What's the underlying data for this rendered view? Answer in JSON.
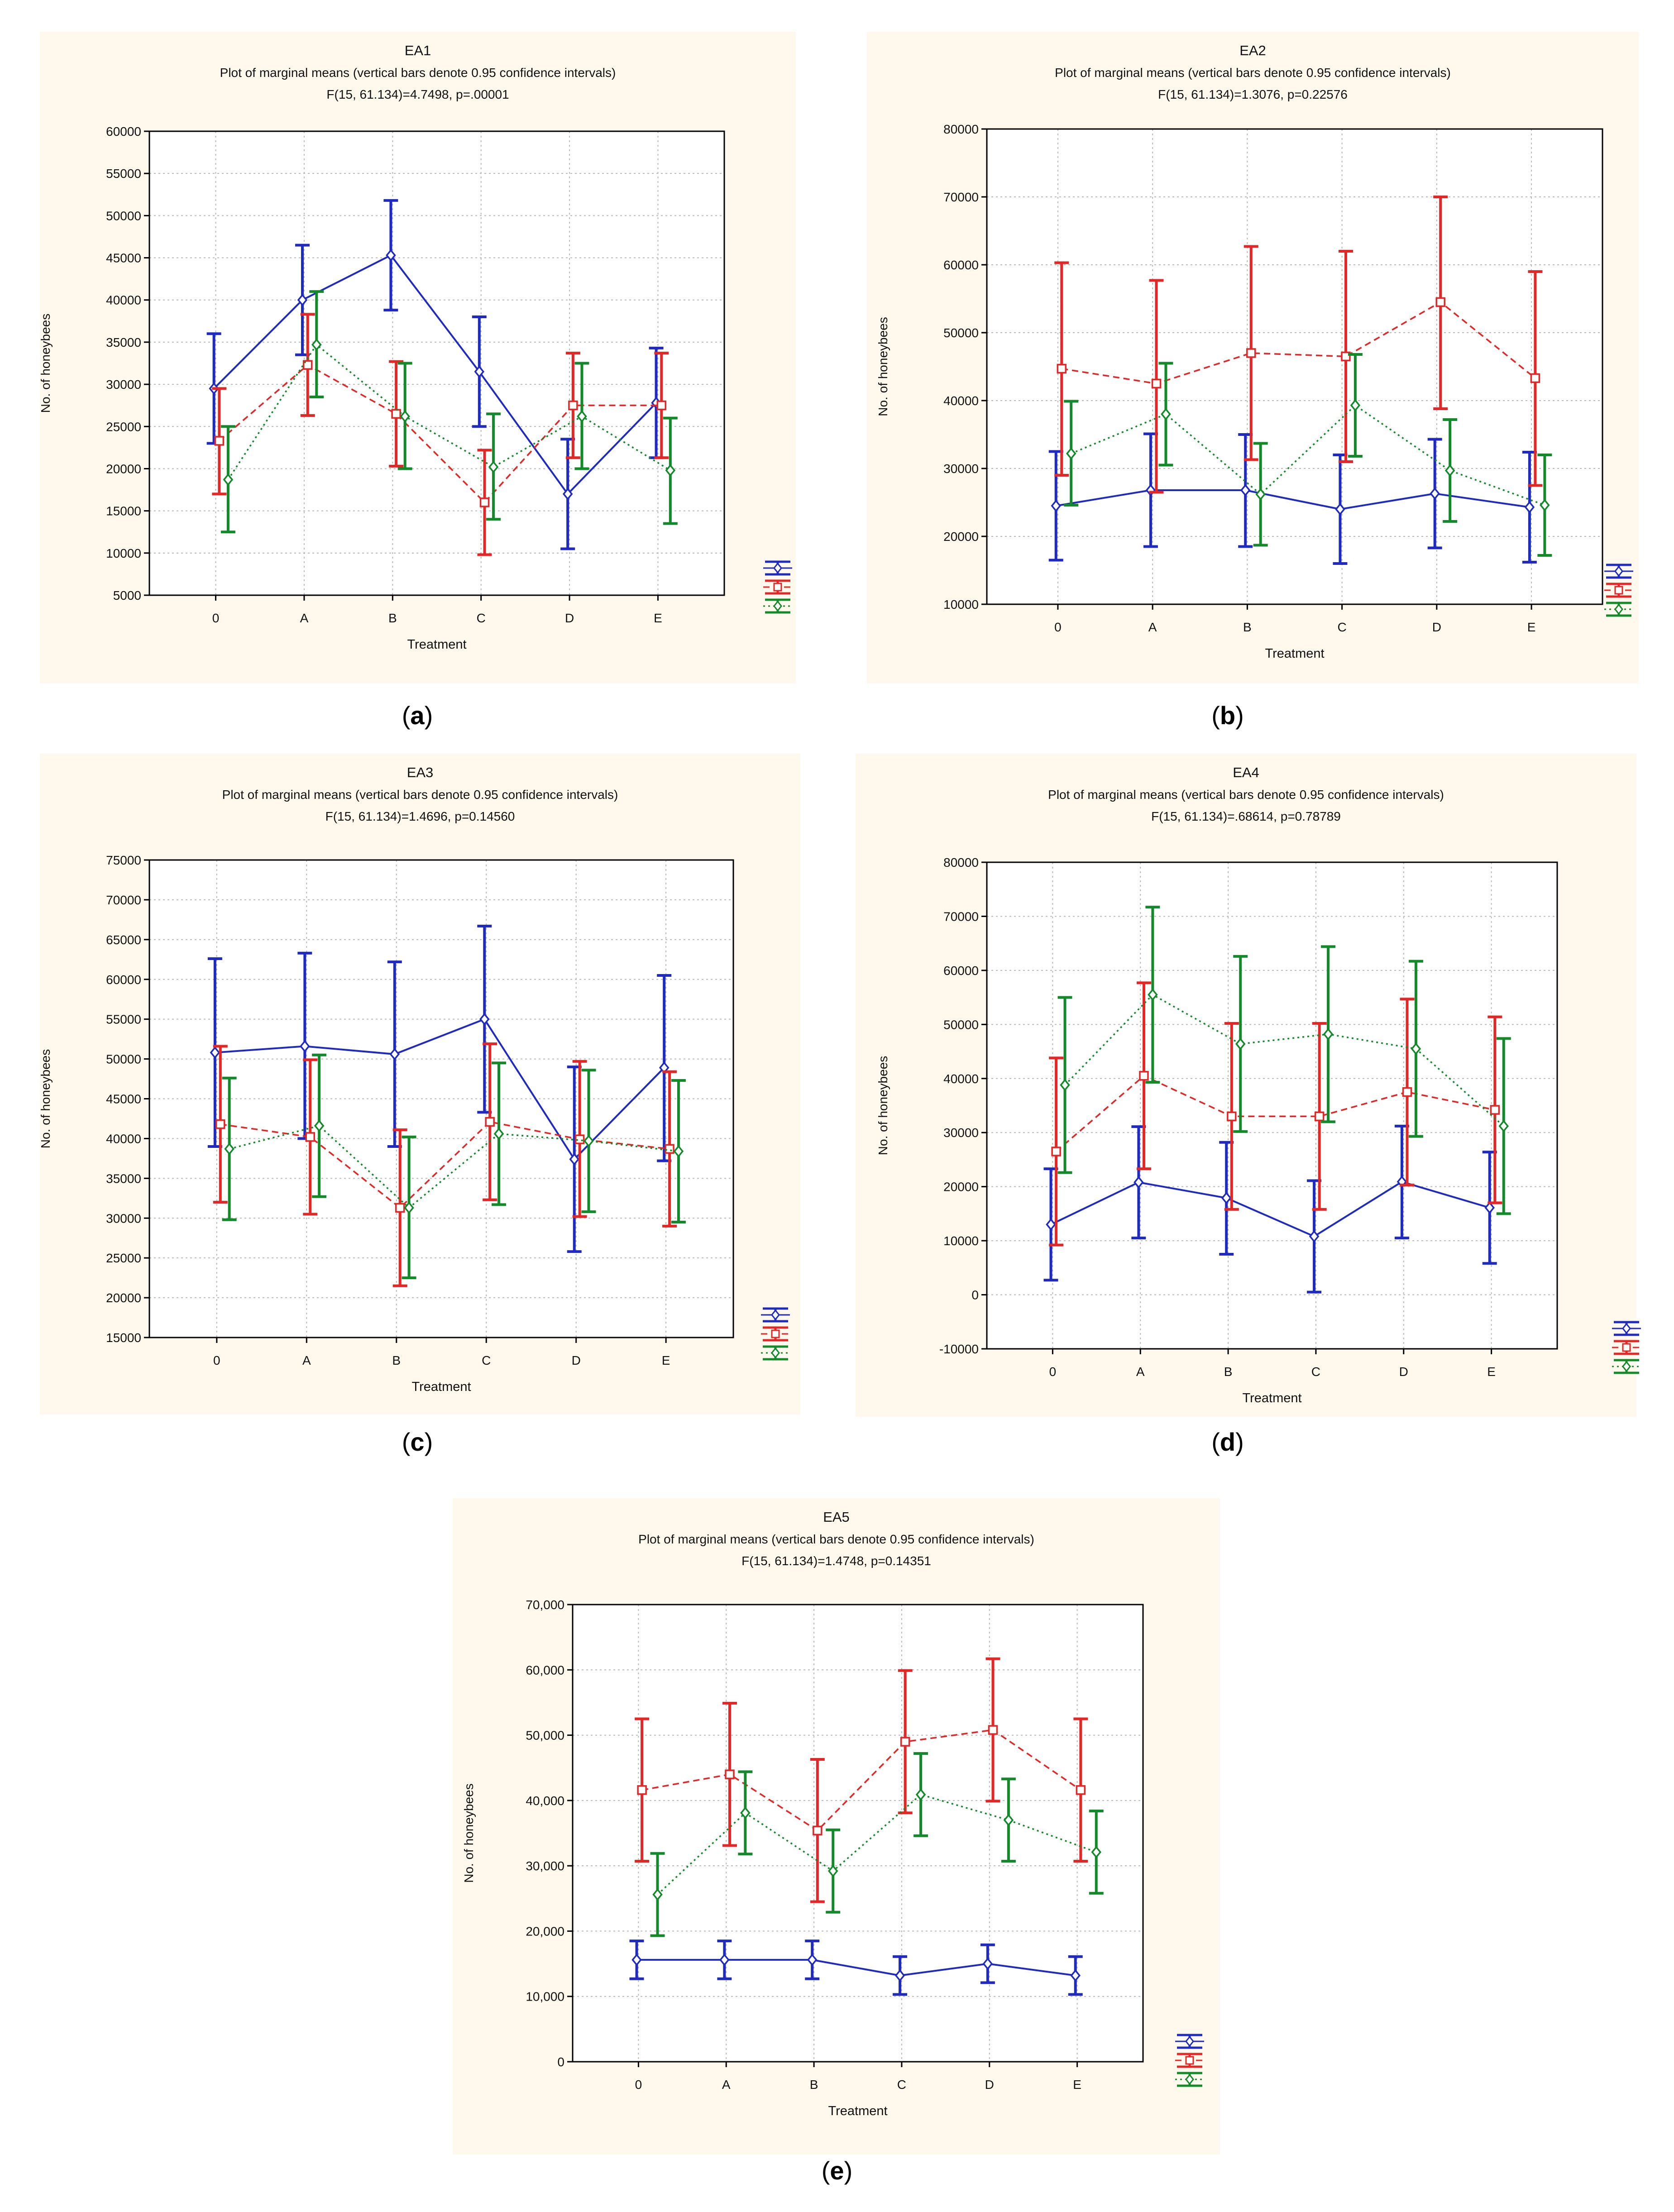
{
  "figure": {
    "panel_letters": [
      "a",
      "b",
      "c",
      "d",
      "e"
    ]
  },
  "colors": {
    "panel_bg": "#FEF9EC",
    "plot_bg": "#FFFFFF",
    "grid": "#B8B8B8",
    "axis": "#000000",
    "series": [
      "#1F2BC0",
      "#E32626",
      "#138A2A"
    ],
    "series_dash": [
      "",
      "14,9",
      "4,7"
    ],
    "series_marker": [
      "diamond",
      "square",
      "diamond"
    ]
  },
  "chart_data": [
    {
      "type": "line",
      "title": "EA1",
      "subtitle": "Plot of marginal means (vertical bars denote 0.95 confidence intervals)",
      "stat": "F(15, 61.134)=4.7498, p=.00001",
      "xlabel": "Treatment",
      "ylabel": "No. of honeybees",
      "categories": [
        "0",
        "A",
        "B",
        "C",
        "D",
        "E"
      ],
      "ylim": [
        5000,
        60000
      ],
      "yticks": [
        5000,
        10000,
        15000,
        20000,
        25000,
        30000,
        35000,
        40000,
        45000,
        50000,
        55000,
        60000
      ],
      "ytick_labels": [
        "5000",
        "10000",
        "15000",
        "20000",
        "25000",
        "30000",
        "35000",
        "40000",
        "45000",
        "50000",
        "55000",
        "60000"
      ],
      "grid": true,
      "series": [
        {
          "values": [
            29500,
            40000,
            45300,
            31500,
            17000,
            27800
          ],
          "lower": [
            23000,
            33500,
            38800,
            25000,
            10500,
            21300
          ],
          "upper": [
            36000,
            46500,
            51800,
            38000,
            23500,
            34300
          ]
        },
        {
          "values": [
            23300,
            32300,
            26500,
            16000,
            27500,
            27500
          ],
          "lower": [
            17000,
            26300,
            20300,
            9800,
            21300,
            21300
          ],
          "upper": [
            29500,
            38300,
            32700,
            22200,
            33700,
            33700
          ]
        },
        {
          "values": [
            18700,
            34700,
            26200,
            20200,
            26200,
            19800
          ],
          "lower": [
            12500,
            28500,
            20000,
            14000,
            20000,
            13500
          ],
          "upper": [
            25000,
            41000,
            32500,
            26500,
            32500,
            26000
          ]
        }
      ]
    },
    {
      "type": "line",
      "title": "EA2",
      "subtitle": "Plot of marginal means (vertical bars denote 0.95 confidence intervals)",
      "stat": "F(15, 61.134)=1.3076, p=0.22576",
      "xlabel": "Treatment",
      "ylabel": "No. of honeybees",
      "categories": [
        "0",
        "A",
        "B",
        "C",
        "D",
        "E"
      ],
      "ylim": [
        10000,
        80000
      ],
      "yticks": [
        10000,
        20000,
        30000,
        40000,
        50000,
        60000,
        70000,
        80000
      ],
      "ytick_labels": [
        "10000",
        "20000",
        "30000",
        "40000",
        "50000",
        "60000",
        "70000",
        "80000"
      ],
      "grid": true,
      "series": [
        {
          "values": [
            24500,
            26800,
            26800,
            24000,
            26300,
            24300
          ],
          "lower": [
            16500,
            18500,
            18500,
            16000,
            18300,
            16200
          ],
          "upper": [
            32500,
            35100,
            35000,
            32000,
            34300,
            32400
          ]
        },
        {
          "values": [
            44700,
            42500,
            47000,
            46500,
            54500,
            43300
          ],
          "lower": [
            29000,
            26500,
            31300,
            31000,
            38800,
            27500
          ],
          "upper": [
            60300,
            57700,
            62700,
            62000,
            70000,
            59000
          ]
        },
        {
          "values": [
            32200,
            38000,
            26200,
            39300,
            29700,
            24600
          ],
          "lower": [
            24600,
            30500,
            18700,
            31800,
            22200,
            17200
          ],
          "upper": [
            39900,
            45500,
            33700,
            46800,
            37200,
            32000
          ]
        }
      ]
    },
    {
      "type": "line",
      "title": "EA3",
      "subtitle": "Plot of marginal means (vertical bars denote 0.95 confidence intervals)",
      "stat": "F(15, 61.134)=1.4696, p=0.14560",
      "xlabel": "Treatment",
      "ylabel": "No. of honeybees",
      "categories": [
        "0",
        "A",
        "B",
        "C",
        "D",
        "E"
      ],
      "ylim": [
        15000,
        75000
      ],
      "yticks": [
        15000,
        20000,
        25000,
        30000,
        35000,
        40000,
        45000,
        50000,
        55000,
        60000,
        65000,
        70000,
        75000
      ],
      "ytick_labels": [
        "15000",
        "20000",
        "25000",
        "30000",
        "35000",
        "40000",
        "45000",
        "50000",
        "55000",
        "60000",
        "65000",
        "70000",
        "75000"
      ],
      "grid": true,
      "series": [
        {
          "values": [
            50800,
            51600,
            50600,
            55000,
            37400,
            48900
          ],
          "lower": [
            39000,
            40000,
            39000,
            43300,
            25800,
            37200
          ],
          "upper": [
            62600,
            63300,
            62200,
            66700,
            49000,
            60500
          ]
        },
        {
          "values": [
            41800,
            40200,
            31300,
            42100,
            39900,
            38700
          ],
          "lower": [
            32000,
            30500,
            21500,
            32300,
            30200,
            29000
          ],
          "upper": [
            51600,
            49900,
            41100,
            51900,
            49700,
            48400
          ]
        },
        {
          "values": [
            38700,
            41600,
            31300,
            40600,
            39700,
            38400
          ],
          "lower": [
            29800,
            32700,
            22500,
            31700,
            30800,
            29500
          ],
          "upper": [
            47600,
            50500,
            40200,
            49500,
            48600,
            47300
          ]
        }
      ]
    },
    {
      "type": "line",
      "title": "EA4",
      "subtitle": "Plot of marginal means (vertical bars denote 0.95 confidence intervals)",
      "stat": "F(15, 61.134)=.68614, p=0.78789",
      "xlabel": "Treatment",
      "ylabel": "No. of honeybees",
      "categories": [
        "0",
        "A",
        "B",
        "C",
        "D",
        "E"
      ],
      "ylim": [
        -10000,
        80000
      ],
      "yticks": [
        -10000,
        0,
        10000,
        20000,
        30000,
        40000,
        50000,
        60000,
        70000,
        80000
      ],
      "ytick_labels": [
        "-10000",
        "0",
        "10000",
        "20000",
        "30000",
        "40000",
        "50000",
        "60000",
        "70000",
        "80000"
      ],
      "grid": true,
      "series": [
        {
          "values": [
            13000,
            20800,
            17900,
            10800,
            20900,
            16100
          ],
          "lower": [
            2700,
            10500,
            7500,
            500,
            10500,
            5800
          ],
          "upper": [
            23300,
            31100,
            28200,
            21100,
            31200,
            26400
          ]
        },
        {
          "values": [
            26500,
            40500,
            33000,
            33000,
            37500,
            34200
          ],
          "lower": [
            9200,
            23300,
            15800,
            15800,
            20300,
            17000
          ],
          "upper": [
            43800,
            57700,
            50200,
            50200,
            54700,
            51400
          ]
        },
        {
          "values": [
            38800,
            55500,
            46400,
            48200,
            45500,
            31200
          ],
          "lower": [
            22600,
            39300,
            30200,
            32000,
            29300,
            15000
          ],
          "upper": [
            55000,
            71700,
            62600,
            64400,
            61700,
            47400
          ]
        }
      ]
    },
    {
      "type": "line",
      "title": "EA5",
      "subtitle": "Plot of marginal means (vertical bars denote 0.95 confidence intervals)",
      "stat": "F(15, 61.134)=1.4748, p=0.14351",
      "xlabel": "Treatment",
      "ylabel": "No. of honeybees",
      "categories": [
        "0",
        "A",
        "B",
        "C",
        "D",
        "E"
      ],
      "ylim": [
        0,
        70000
      ],
      "yticks": [
        0,
        10000,
        20000,
        30000,
        40000,
        50000,
        60000,
        70000
      ],
      "ytick_labels": [
        "0",
        "10,000",
        "20,000",
        "30,000",
        "40,000",
        "50,000",
        "60,000",
        "70,000"
      ],
      "grid": true,
      "series": [
        {
          "values": [
            15600,
            15600,
            15600,
            13200,
            15000,
            13200
          ],
          "lower": [
            12700,
            12700,
            12700,
            10300,
            12100,
            10300
          ],
          "upper": [
            18500,
            18500,
            18500,
            16100,
            17900,
            16100
          ]
        },
        {
          "values": [
            41600,
            44000,
            35400,
            49000,
            50800,
            41600
          ],
          "lower": [
            30700,
            33100,
            24500,
            38100,
            39900,
            30700
          ],
          "upper": [
            52500,
            54900,
            46300,
            59900,
            61700,
            52500
          ]
        },
        {
          "values": [
            25600,
            38100,
            29200,
            40900,
            37000,
            32100
          ],
          "lower": [
            19300,
            31800,
            22900,
            34600,
            30700,
            25800
          ],
          "upper": [
            31900,
            44400,
            35500,
            47200,
            43300,
            38400
          ]
        }
      ]
    }
  ]
}
